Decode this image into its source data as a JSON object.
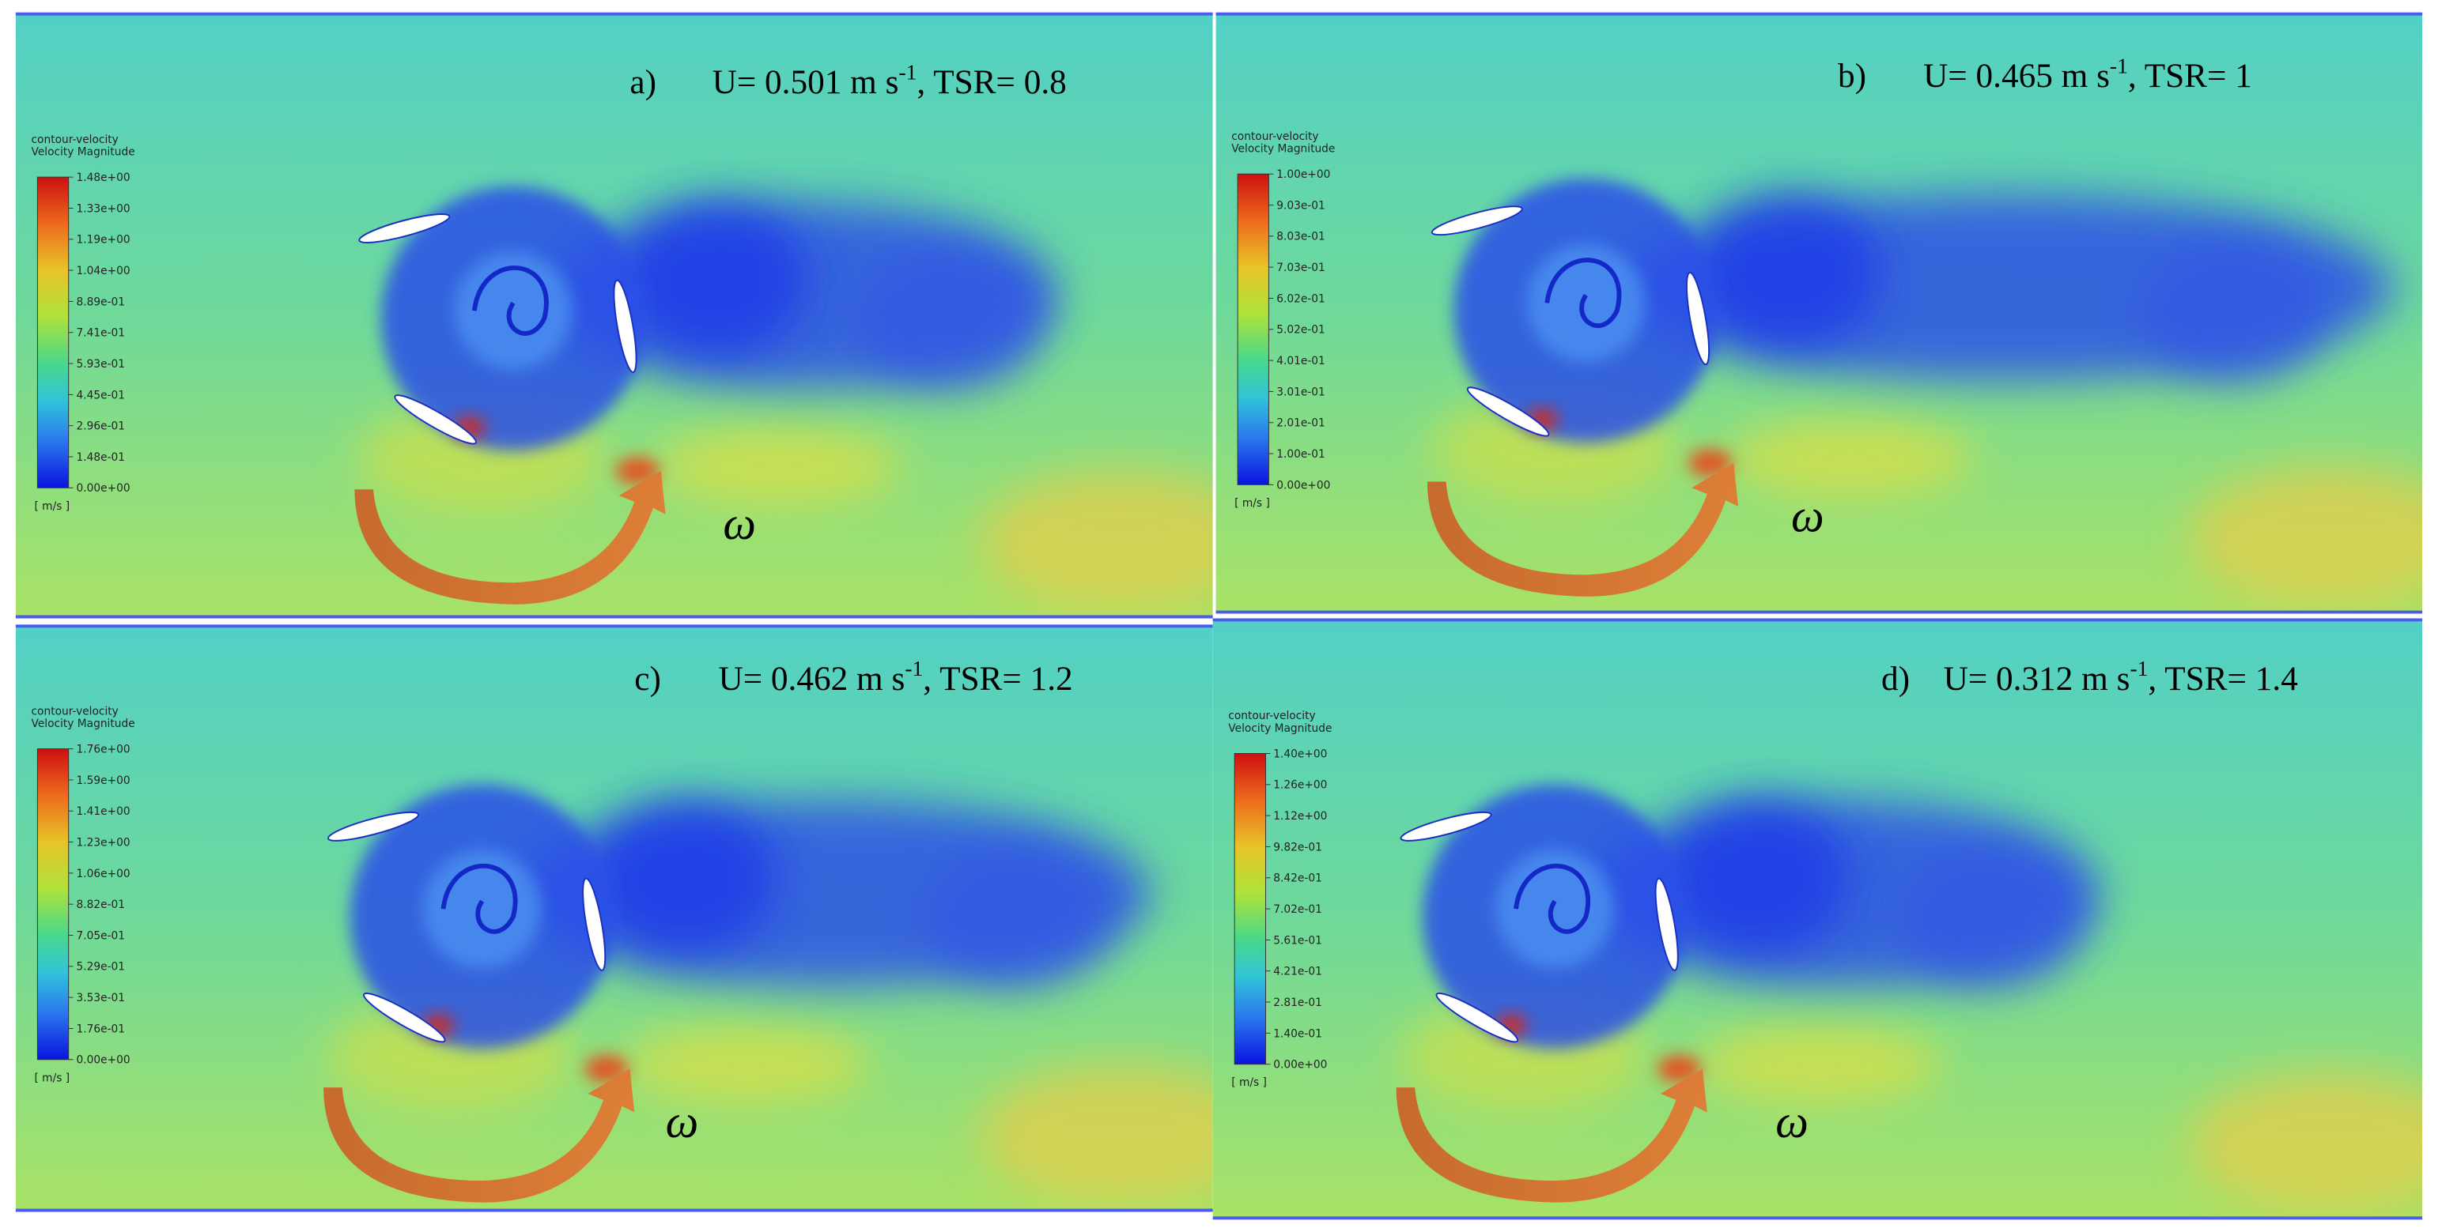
{
  "panels": [
    {
      "label": "a)",
      "caption": {
        "main": "U= 0.501 m s",
        "superscript": "-1",
        "rest": ", TSR= 0.8"
      },
      "legend": {
        "title": "contour-velocity",
        "subtitle": "Velocity Magnitude",
        "ticks": [
          "1.48e+00",
          "1.33e+00",
          "1.19e+00",
          "1.04e+00",
          "8.89e-01",
          "7.41e-01",
          "5.93e-01",
          "4.45e-01",
          "2.96e-01",
          "1.48e-01",
          "0.00e+00"
        ],
        "unit": "[ m/s ]"
      },
      "symbol": "ω"
    },
    {
      "label": "b)",
      "caption": {
        "main": "U= 0.465 m s",
        "superscript": "-1",
        "rest": ", TSR= 1"
      },
      "legend": {
        "title": "contour-velocity",
        "subtitle": "Velocity Magnitude",
        "ticks": [
          "1.00e+00",
          "9.03e-01",
          "8.03e-01",
          "7.03e-01",
          "6.02e-01",
          "5.02e-01",
          "4.01e-01",
          "3.01e-01",
          "2.01e-01",
          "1.00e-01",
          "0.00e+00"
        ],
        "unit": "[ m/s ]"
      },
      "symbol": "ω"
    },
    {
      "label": "c)",
      "caption": {
        "main": "U= 0.462 m s",
        "superscript": "-1",
        "rest": ", TSR= 1.2"
      },
      "legend": {
        "title": "contour-velocity",
        "subtitle": "Velocity Magnitude",
        "ticks": [
          "1.76e+00",
          "1.59e+00",
          "1.41e+00",
          "1.23e+00",
          "1.06e+00",
          "8.82e-01",
          "7.05e-01",
          "5.29e-01",
          "3.53e-01",
          "1.76e-01",
          "0.00e+00"
        ],
        "unit": "[ m/s ]"
      },
      "symbol": "ω"
    },
    {
      "label": "d)",
      "caption": {
        "main": "U= 0.312 m s",
        "superscript": "-1",
        "rest": ", TSR= 1.4"
      },
      "legend": {
        "title": "contour-velocity",
        "subtitle": "Velocity Magnitude",
        "ticks": [
          "1.40e+00",
          "1.26e+00",
          "1.12e+00",
          "9.82e-01",
          "8.42e-01",
          "7.02e-01",
          "5.61e-01",
          "4.21e-01",
          "2.81e-01",
          "1.40e-01",
          "0.00e+00"
        ],
        "unit": "[ m/s ]"
      },
      "symbol": "ω"
    }
  ]
}
